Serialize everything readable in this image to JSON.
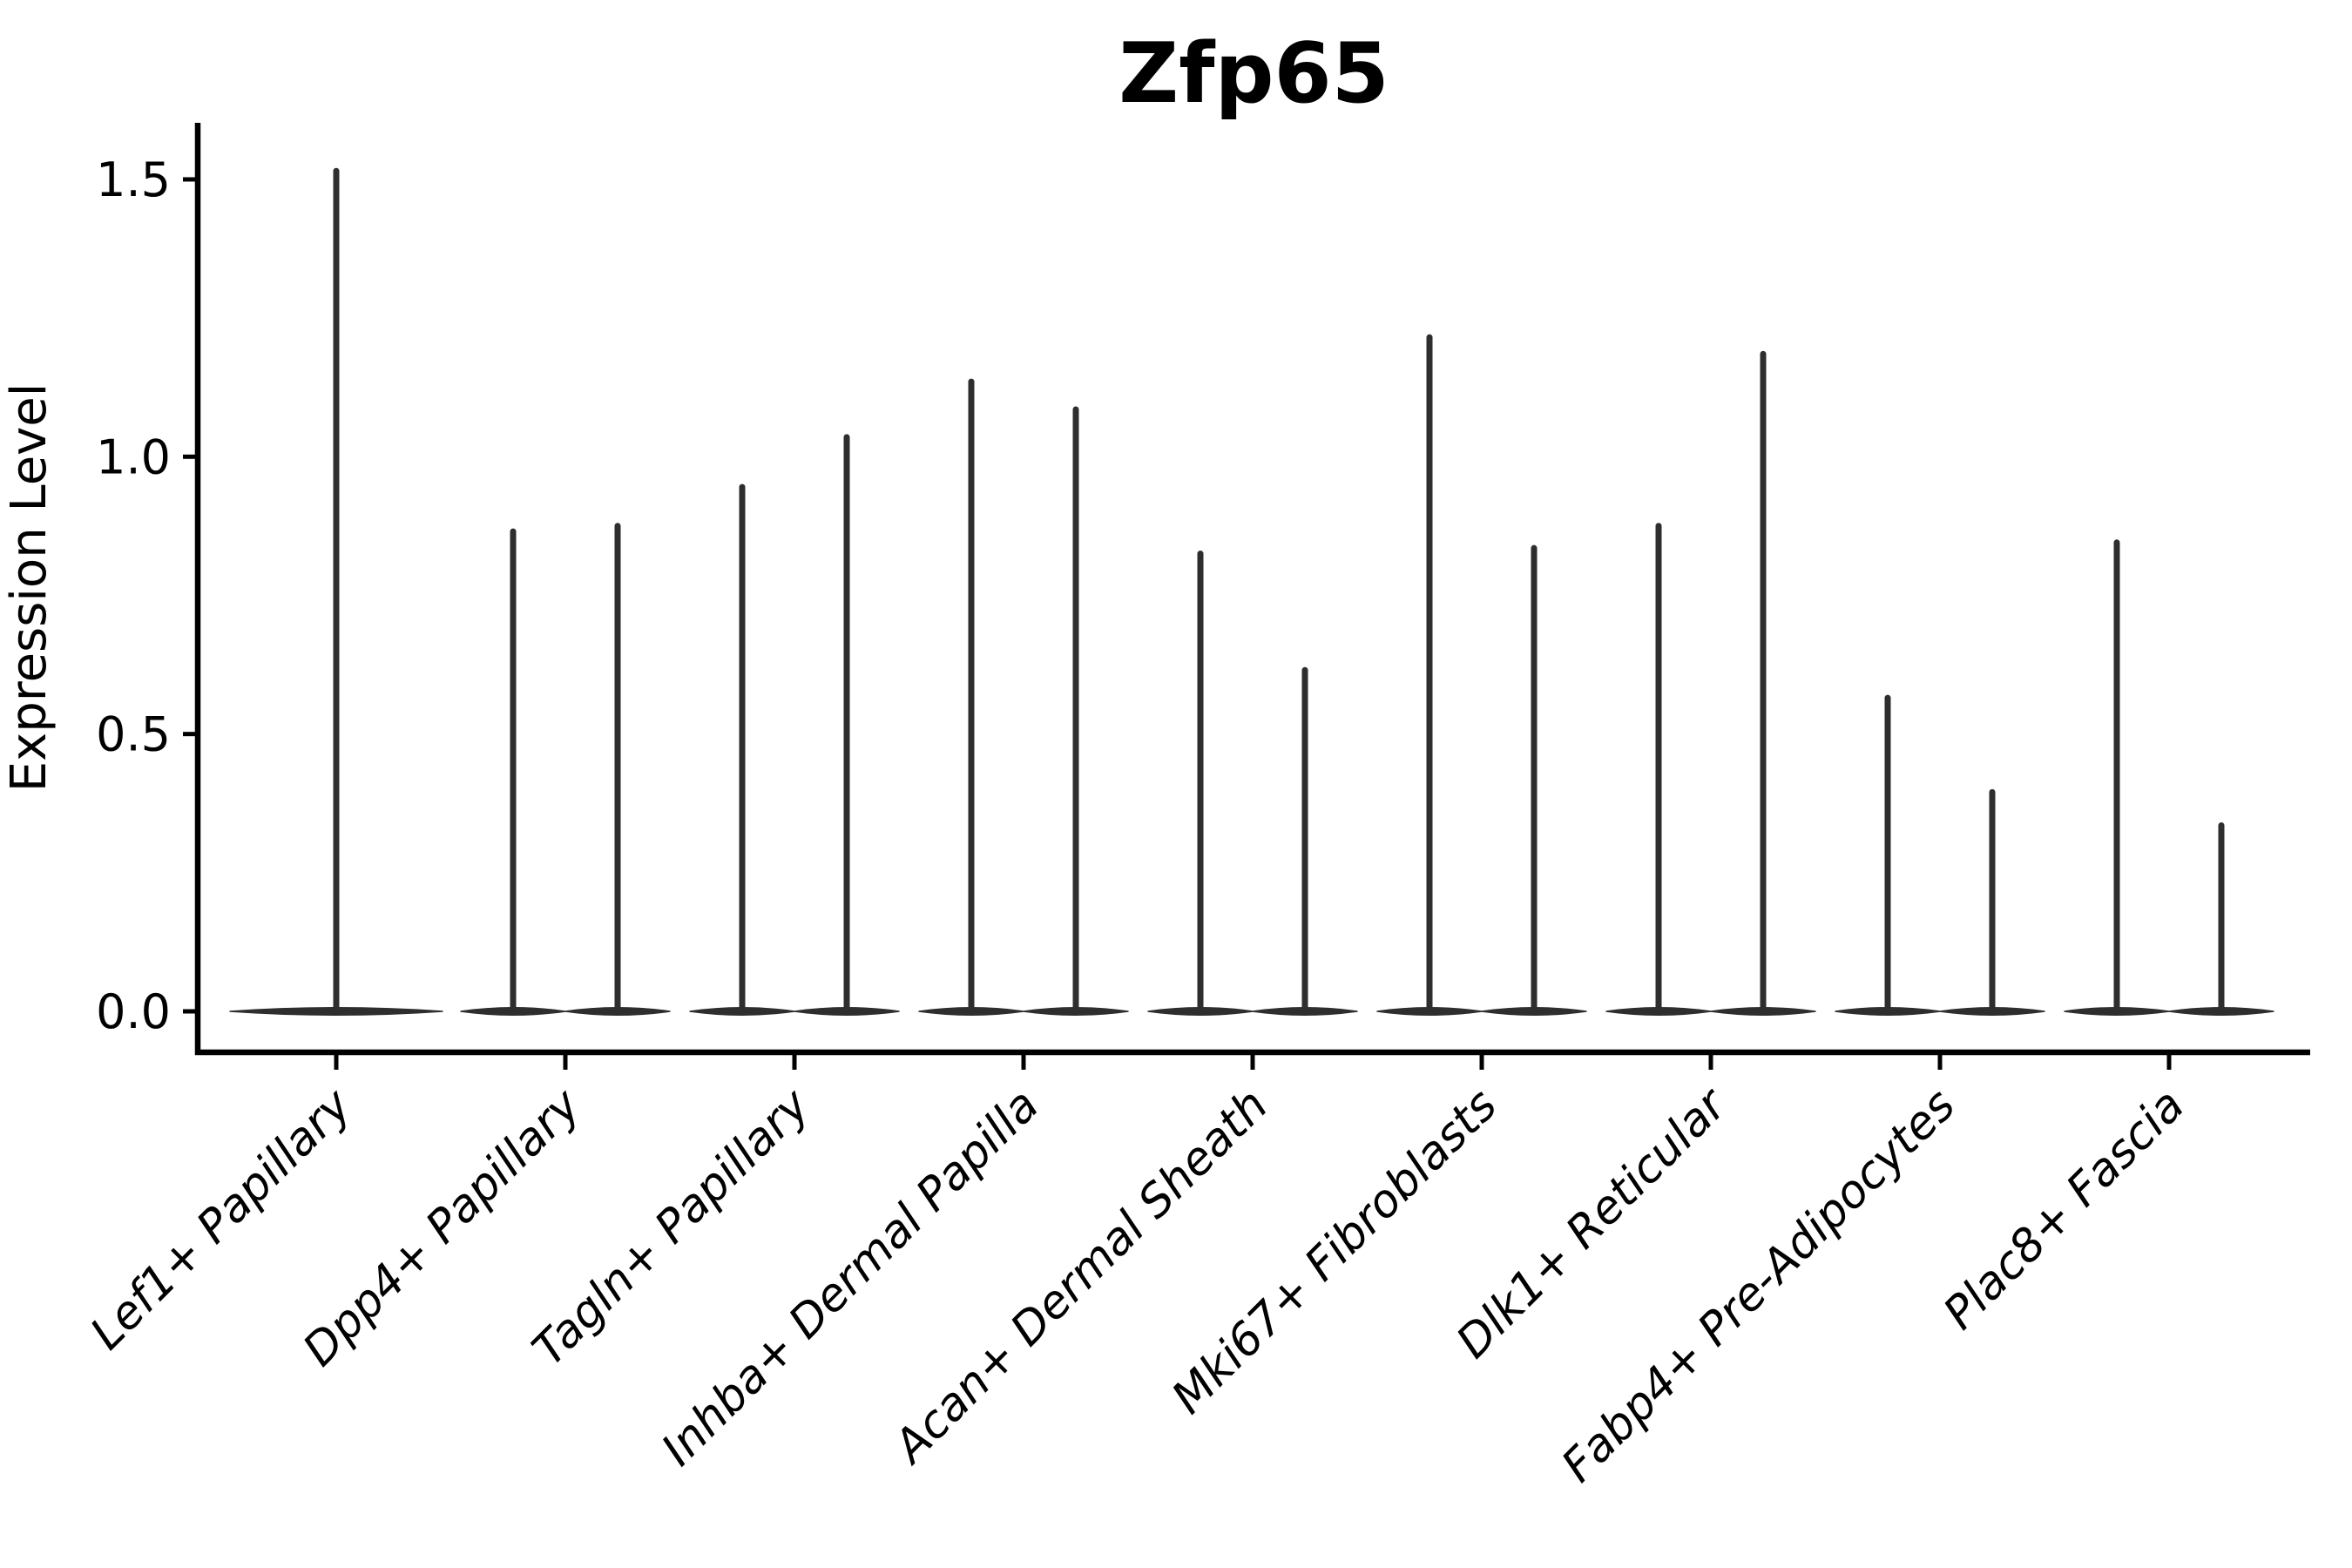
{
  "title": "Zfp65",
  "axes": {
    "ylabel": "Expression Level",
    "xlabel": ""
  },
  "colors": {
    "violin": "#2e2e2e",
    "axis": "#000000",
    "text": "#000000",
    "background": "#ffffff"
  },
  "chart_data": {
    "type": "violin",
    "title": "Zfp65",
    "ylabel": "Expression Level",
    "xlabel": "",
    "ylim": [
      0,
      1.6
    ],
    "yticks": [
      0,
      0.5,
      1.0,
      1.5
    ],
    "ytick_labels": [
      "0.0",
      "0.5",
      "1.0",
      "1.5"
    ],
    "grid": false,
    "legend": null,
    "baseline_value": 0,
    "categories": [
      "Lef1+ Papillary",
      "Dpp4+ Papillary",
      "Tagln+ Papillary",
      "Inhba+ Dermal Papilla",
      "Acan+ Dermal Sheath",
      "Mki67+ Fibroblasts",
      "Dlk1+ Reticular",
      "Fabp4+ Pre-Adipocytes",
      "Plac8+ Fascia"
    ],
    "violins": [
      {
        "category": "Lef1+ Papillary",
        "max_values": [
          1.52
        ]
      },
      {
        "category": "Dpp4+ Papillary",
        "max_values": [
          0.87,
          0.88
        ]
      },
      {
        "category": "Tagln+ Papillary",
        "max_values": [
          0.95,
          1.04
        ]
      },
      {
        "category": "Inhba+ Dermal Papilla",
        "max_values": [
          1.14,
          1.09
        ]
      },
      {
        "category": "Acan+ Dermal Sheath",
        "max_values": [
          0.83,
          0.62
        ]
      },
      {
        "category": "Mki67+ Fibroblasts",
        "max_values": [
          1.22,
          0.84
        ]
      },
      {
        "category": "Dlk1+ Reticular",
        "max_values": [
          0.88,
          1.19
        ]
      },
      {
        "category": "Fabp4+ Pre-Adipocytes",
        "max_values": [
          0.57,
          0.4
        ]
      },
      {
        "category": "Plac8+ Fascia",
        "max_values": [
          0.85,
          0.34
        ]
      }
    ]
  }
}
